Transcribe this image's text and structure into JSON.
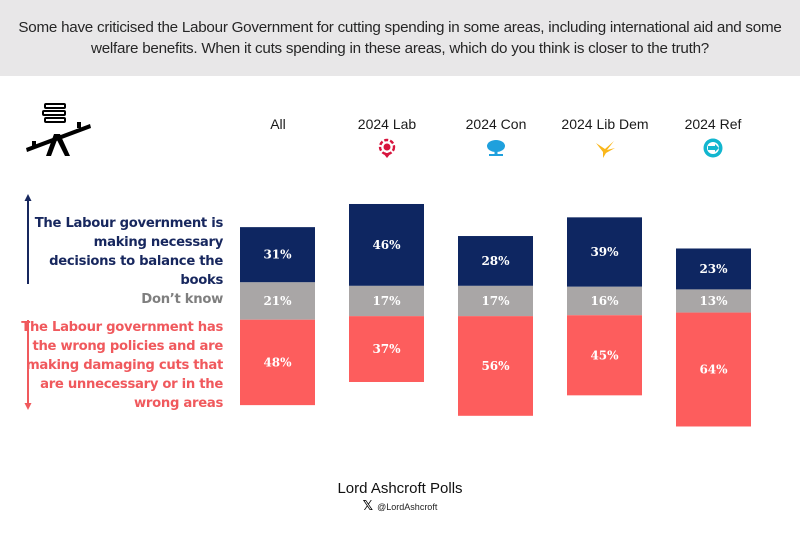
{
  "header": {
    "question": "Some have criticised the Labour Government for cutting spending in some areas, including international aid and some welfare benefits. When it cuts spending in these areas, which do you think is closer to the truth?"
  },
  "logo_icon": "balance-seesaw-books-icon",
  "axis": {
    "top_label": "The Labour government is making necessary decisions to balance the books",
    "middle_label": "Don’t know",
    "bottom_label": "The Labour government has the wrong policies and are making damaging cuts that are unnecessary or in the wrong areas"
  },
  "colors": {
    "necessary": "#0e2661",
    "dont_know": "#a9a6a6",
    "wrong": "#fd5d5d",
    "header_bg": "#e8e7e8"
  },
  "chart_data": {
    "type": "bar",
    "stacked": true,
    "title": "Some have criticised the Labour Government for cutting spending in some areas, including international aid and some welfare benefits. When it cuts spending in these areas, which do you think is closer to the truth?",
    "categories": [
      "All",
      "2024 Lab",
      "2024 Con",
      "2024 Lib Dem",
      "2024 Ref"
    ],
    "category_icons": [
      null,
      "labour-rose-icon",
      "conservative-tree-icon",
      "lib-dem-bird-icon",
      "reform-arrow-icon"
    ],
    "series": [
      {
        "name": "The Labour government is making necessary decisions to balance the books",
        "values": [
          31,
          46,
          28,
          39,
          23
        ]
      },
      {
        "name": "Don’t know",
        "values": [
          21,
          17,
          17,
          16,
          13
        ]
      },
      {
        "name": "The Labour government has the wrong policies and are making damaging cuts that are unnecessary or in the wrong areas",
        "values": [
          48,
          37,
          56,
          45,
          64
        ]
      }
    ],
    "value_labels": [
      [
        "31%",
        "46%",
        "28%",
        "39%",
        "23%"
      ],
      [
        "21%",
        "17%",
        "17%",
        "16%",
        "13%"
      ],
      [
        "48%",
        "37%",
        "56%",
        "45%",
        "64%"
      ]
    ],
    "xlabel": "",
    "ylabel": "",
    "ylim": [
      0,
      100
    ],
    "grid": false,
    "legend": "left"
  },
  "footer": {
    "source": "Lord Ashcroft Polls",
    "handle": "@LordAshcroft",
    "handle_icon": "x-logo-icon"
  }
}
